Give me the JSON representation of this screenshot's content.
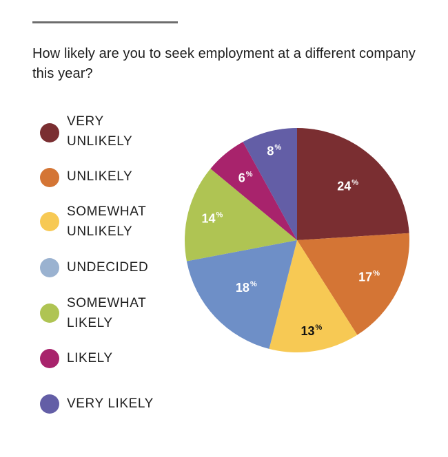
{
  "chart_data": {
    "type": "pie",
    "title": "How likely are you to seek employment at a different company this year?",
    "start": "top",
    "direction": "clockwise",
    "slices": [
      {
        "label": "VERY UNLIKELY",
        "value": 24,
        "display": "24",
        "color": "#7a2e31",
        "legend_color": "#7a2e31",
        "text_color": "#ffffff"
      },
      {
        "label": "UNLIKELY",
        "value": 17,
        "display": "17",
        "color": "#d47535",
        "legend_color": "#d47535",
        "text_color": "#ffffff"
      },
      {
        "label": "SOMEWHAT UNLIKELY",
        "value": 13,
        "display": "13",
        "color": "#f7c954",
        "legend_color": "#f7c954",
        "text_color": "#111111"
      },
      {
        "label": "UNDECIDED",
        "value": 18,
        "display": "18",
        "color": "#6e8fc7",
        "legend_color": "#9ab2d0",
        "text_color": "#ffffff"
      },
      {
        "label": "SOMEWHAT LIKELY",
        "value": 14,
        "display": "14",
        "color": "#afc453",
        "legend_color": "#afc453",
        "text_color": "#ffffff"
      },
      {
        "label": "LIKELY",
        "value": 6,
        "display": "6",
        "color": "#a8236c",
        "legend_color": "#a8236c",
        "text_color": "#ffffff"
      },
      {
        "label": "VERY LIKELY",
        "value": 8,
        "display": "8",
        "color": "#635ea6",
        "legend_color": "#635ea6",
        "text_color": "#ffffff"
      }
    ],
    "percent_sign": "%"
  },
  "legend": [
    {
      "label": "VERY\nUNLIKELY"
    },
    {
      "label": "UNLIKELY"
    },
    {
      "label": "SOMEWHAT\nUNLIKELY"
    },
    {
      "label": "UNDECIDED"
    },
    {
      "label": "SOMEWHAT\nLIKELY"
    },
    {
      "label": "LIKELY"
    },
    {
      "label": "VERY LIKELY"
    }
  ]
}
